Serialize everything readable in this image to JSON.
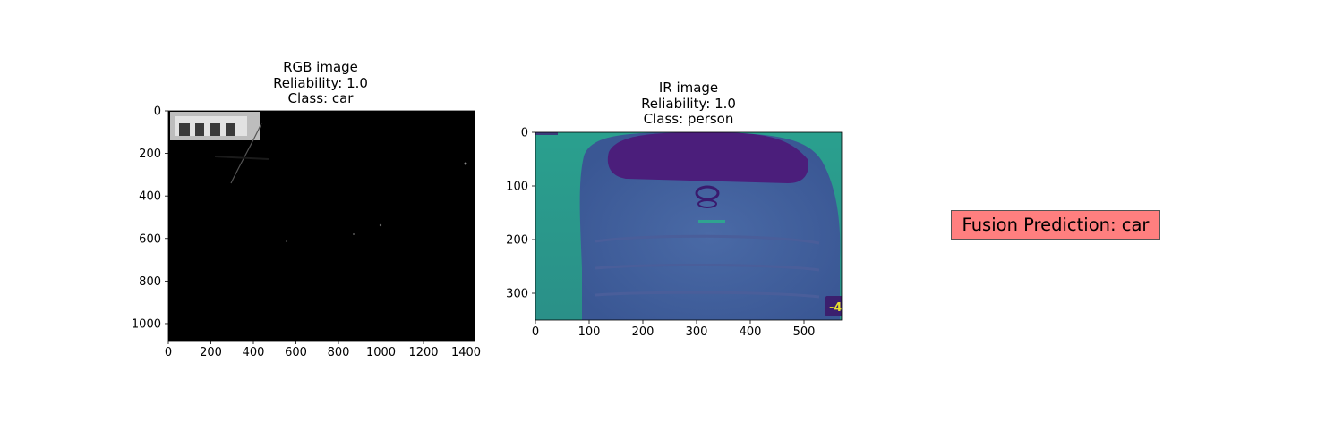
{
  "chart_data": [
    {
      "type": "image",
      "title_lines": [
        "RGB image",
        "Reliability: 1.0",
        "Class: car"
      ],
      "xlim": [
        0,
        1440
      ],
      "ylim": [
        1080,
        0
      ],
      "x_ticks": [
        0,
        200,
        400,
        600,
        800,
        1000,
        1200,
        1400
      ],
      "y_ticks": [
        0,
        200,
        400,
        600,
        800,
        1000
      ],
      "colors": {
        "background": "#000000",
        "highlight": "#d8d8d8"
      }
    },
    {
      "type": "image",
      "title_lines": [
        "IR image",
        "Reliability: 1.0",
        "Class: person"
      ],
      "xlim": [
        0,
        570
      ],
      "ylim": [
        350,
        0
      ],
      "x_ticks": [
        0,
        100,
        200,
        300,
        400,
        500
      ],
      "y_ticks": [
        0,
        100,
        200,
        300
      ],
      "overlay_text": "-4",
      "colors": {
        "background": "#2a9a8c",
        "car_body": "#3f5f9a",
        "window": "#4a1f7a",
        "overlay_bg": "#3b1f6e",
        "overlay_text": "#e8e030"
      }
    }
  ],
  "fusion": {
    "label": "Fusion Prediction: car",
    "color": "#ff7f7f"
  }
}
